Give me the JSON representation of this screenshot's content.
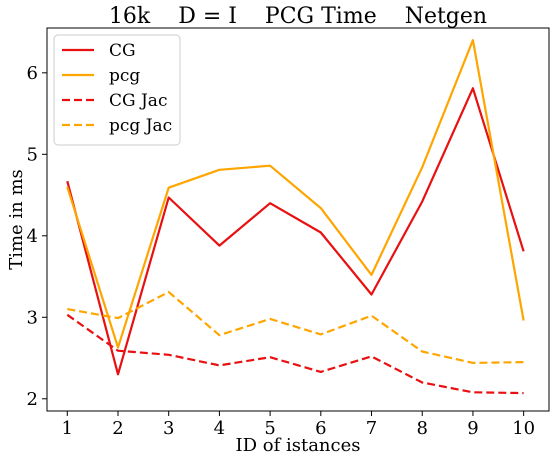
{
  "chart_data": {
    "type": "line",
    "title": "16k    D = I    PCG Time    Netgen",
    "xlabel": "ID of istances",
    "ylabel": "Time in ms",
    "x": [
      1,
      2,
      3,
      4,
      5,
      6,
      7,
      8,
      9,
      10
    ],
    "xticks": [
      "1",
      "2",
      "3",
      "4",
      "5",
      "6",
      "7",
      "8",
      "9",
      "10"
    ],
    "yticks": [
      "2",
      "3",
      "4",
      "5",
      "6"
    ],
    "xlim": [
      0.6,
      10.5
    ],
    "ylim": [
      1.85,
      6.55
    ],
    "grid": false,
    "legend_position": "top-left",
    "series": [
      {
        "name": "CG",
        "color": "#e81010",
        "dash": "solid",
        "values": [
          4.67,
          2.3,
          4.47,
          3.88,
          4.4,
          4.04,
          3.28,
          4.42,
          5.81,
          3.81
        ]
      },
      {
        "name": "pcg",
        "color": "#ffa500",
        "dash": "solid",
        "values": [
          4.6,
          2.63,
          4.59,
          4.81,
          4.86,
          4.34,
          3.52,
          4.84,
          6.4,
          2.96
        ]
      },
      {
        "name": "CG Jac",
        "color": "#e81010",
        "dash": "dashed",
        "values": [
          3.03,
          2.59,
          2.54,
          2.41,
          2.51,
          2.33,
          2.52,
          2.2,
          2.08,
          2.07
        ]
      },
      {
        "name": "pcg Jac",
        "color": "#ffa500",
        "dash": "dashed",
        "values": [
          3.1,
          2.99,
          3.31,
          2.78,
          2.98,
          2.79,
          3.02,
          2.58,
          2.44,
          2.45
        ]
      }
    ]
  }
}
